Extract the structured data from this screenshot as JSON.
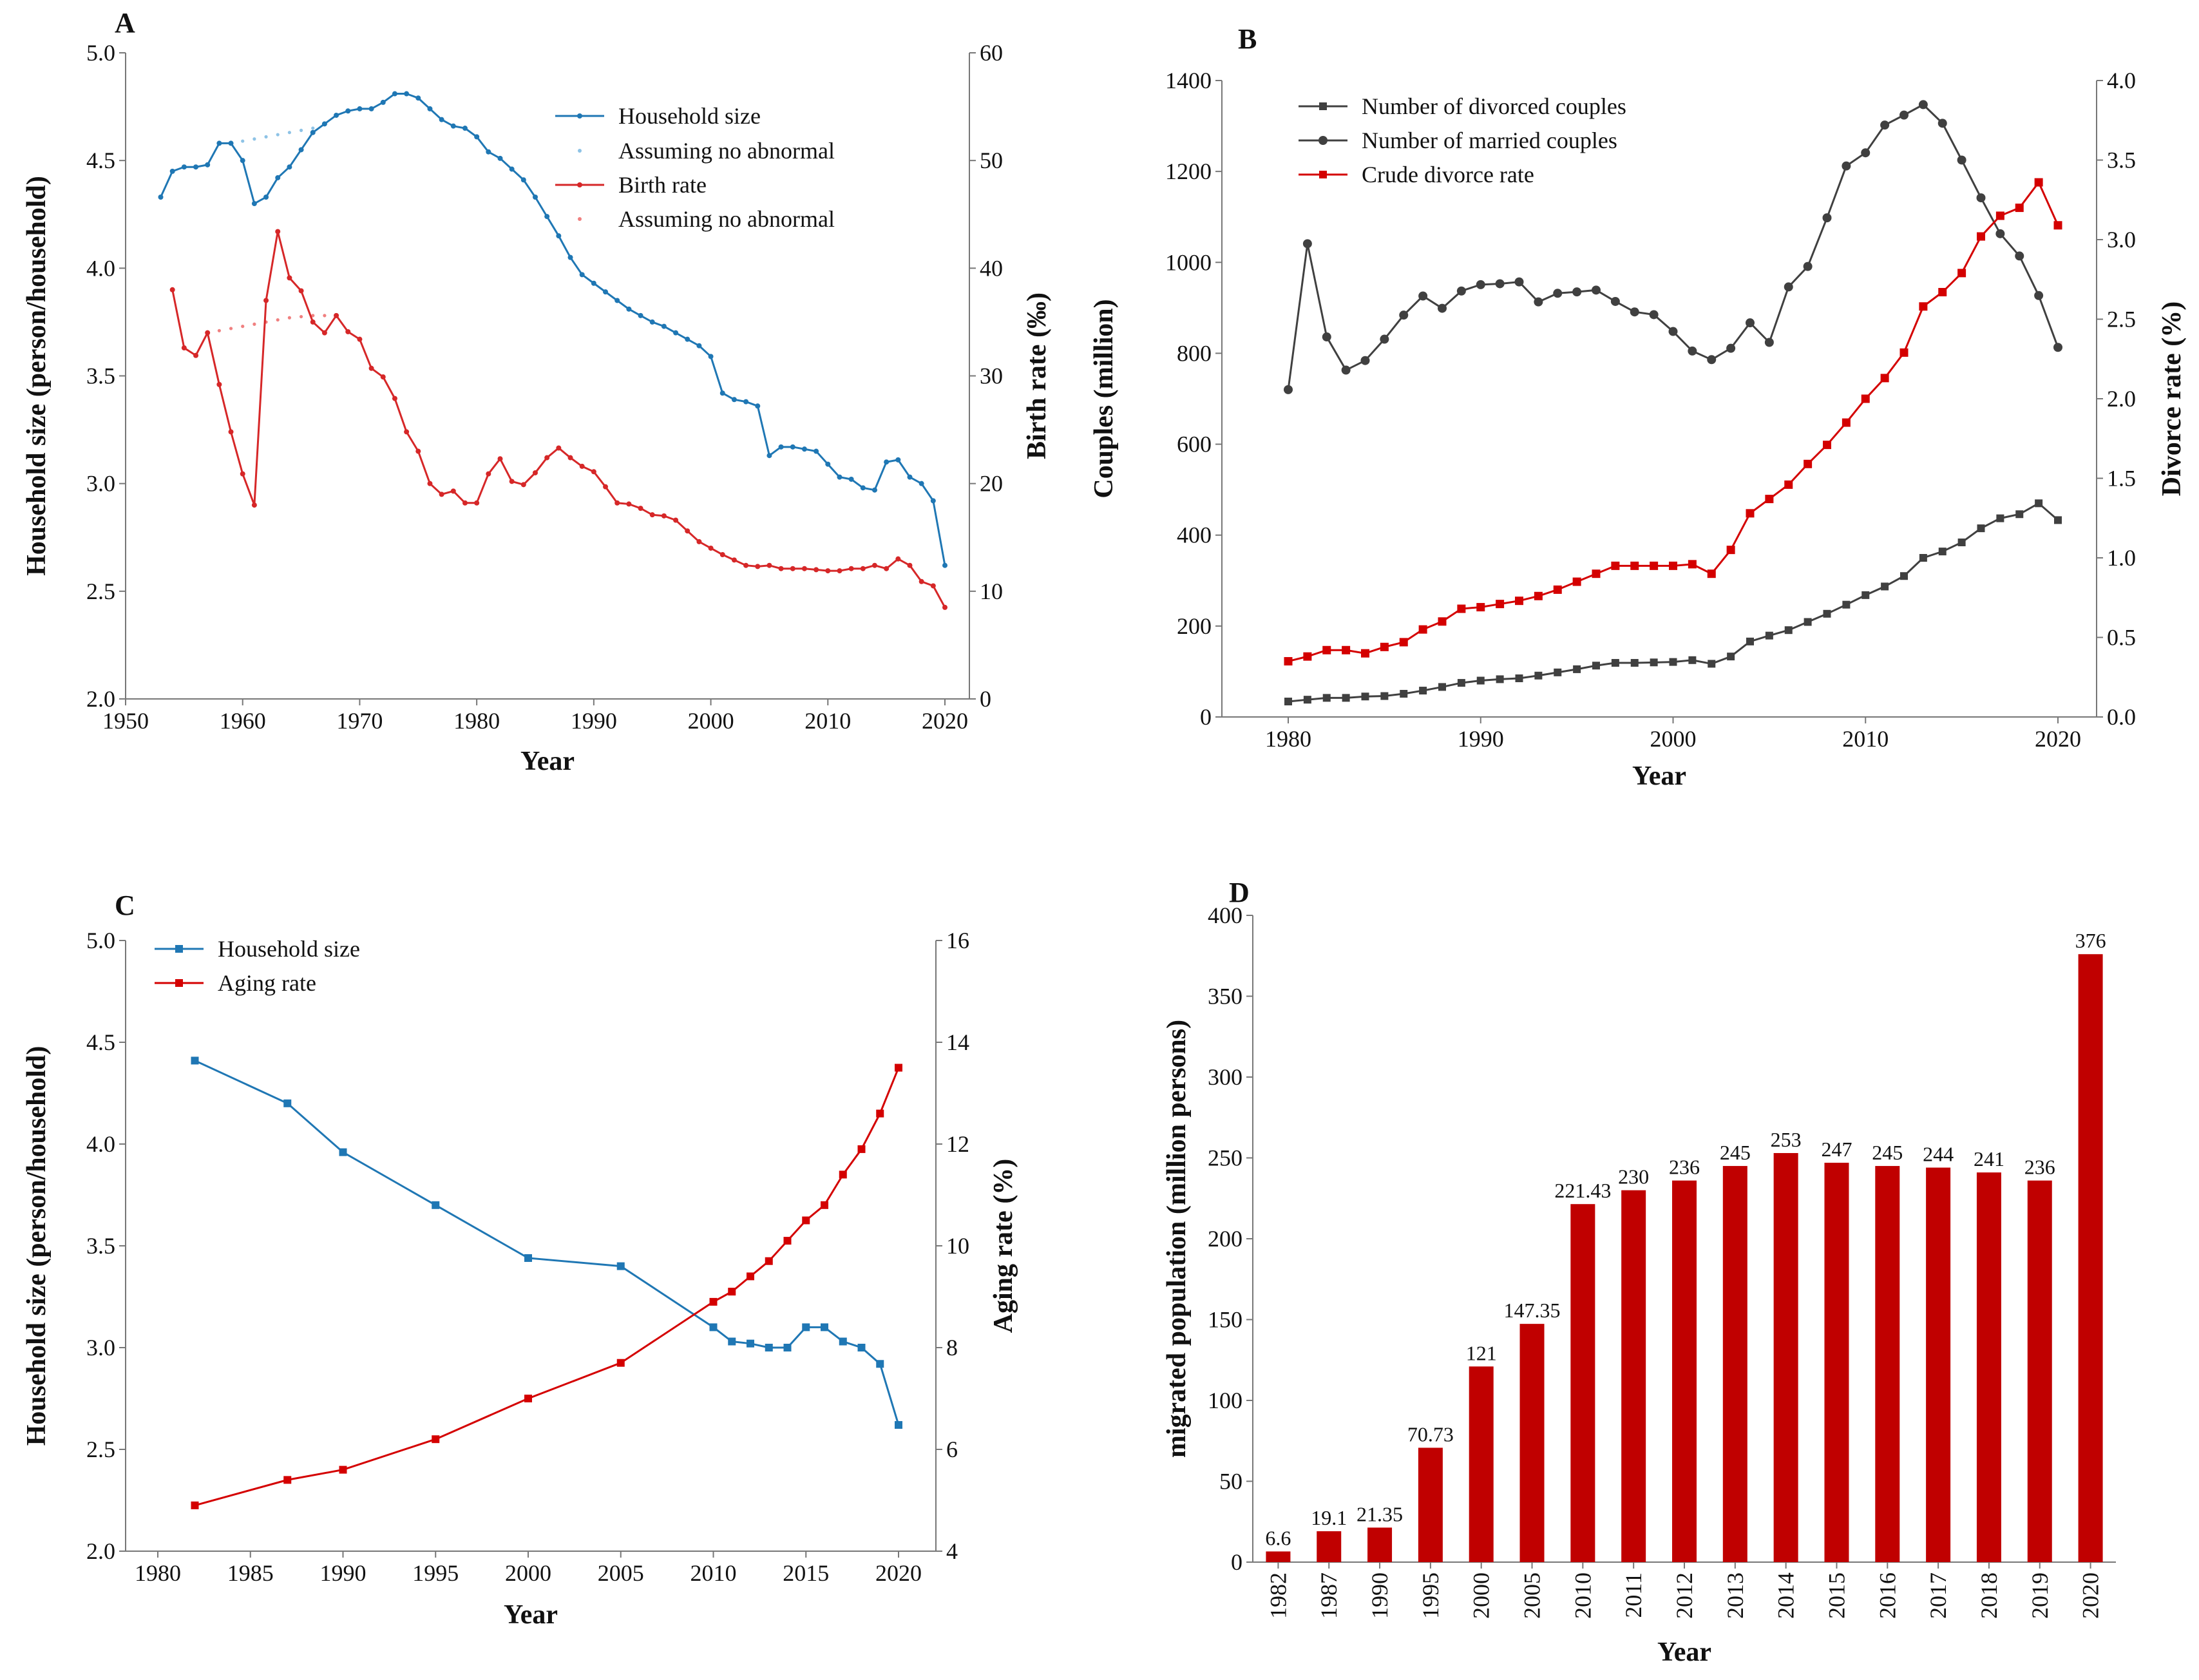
{
  "chart_data": [
    {
      "panel": "A",
      "type": "line",
      "xlabel": "Year",
      "ylabel": "Household size (person/household)",
      "y2label": "Birth rate (‰)",
      "xlim": [
        1950,
        2020
      ],
      "xticks": [
        1950,
        1960,
        1970,
        1980,
        1990,
        2000,
        2010,
        2020
      ],
      "ylim": [
        2.0,
        5.0
      ],
      "yticks": [
        "2.0",
        "2.5",
        "3.0",
        "3.5",
        "4.0",
        "4.5",
        "5.0"
      ],
      "y2lim": [
        0,
        60
      ],
      "y2ticks": [
        "0",
        "10",
        "20",
        "30",
        "40",
        "50",
        "60"
      ],
      "legend": [
        "Household size",
        "Assuming no abnormal",
        "Birth rate",
        "Assuming no abnormal"
      ],
      "legend_position": "top-right",
      "series": [
        {
          "name": "Household size",
          "axis": "left",
          "color": "#1f77b4",
          "x": [
            1953,
            1954,
            1955,
            1956,
            1957,
            1958,
            1959,
            1960,
            1961,
            1962,
            1963,
            1964,
            1965,
            1966,
            1967,
            1968,
            1969,
            1970,
            1971,
            1972,
            1973,
            1974,
            1975,
            1976,
            1977,
            1978,
            1979,
            1980,
            1981,
            1982,
            1983,
            1984,
            1985,
            1986,
            1987,
            1988,
            1989,
            1990,
            1991,
            1992,
            1993,
            1994,
            1995,
            1996,
            1997,
            1998,
            1999,
            2000,
            2001,
            2002,
            2003,
            2004,
            2005,
            2006,
            2007,
            2008,
            2009,
            2010,
            2011,
            2012,
            2013,
            2014,
            2015,
            2016,
            2017,
            2018,
            2019,
            2020
          ],
          "y": [
            4.33,
            4.45,
            4.47,
            4.47,
            4.48,
            4.58,
            4.58,
            4.5,
            4.3,
            4.33,
            4.42,
            4.47,
            4.55,
            4.63,
            4.67,
            4.71,
            4.73,
            4.74,
            4.74,
            4.77,
            4.81,
            4.81,
            4.79,
            4.74,
            4.69,
            4.66,
            4.65,
            4.61,
            4.54,
            4.51,
            4.46,
            4.41,
            4.33,
            4.24,
            4.15,
            4.05,
            3.97,
            3.93,
            3.89,
            3.85,
            3.81,
            3.78,
            3.75,
            3.73,
            3.7,
            3.67,
            3.64,
            3.59,
            3.42,
            3.39,
            3.38,
            3.36,
            3.13,
            3.17,
            3.17,
            3.16,
            3.15,
            3.09,
            3.03,
            3.02,
            2.98,
            2.97,
            3.1,
            3.11,
            3.03,
            3.0,
            2.92,
            2.62
          ]
        },
        {
          "name": "Assuming no abnormal",
          "axis": "left",
          "color": "#8ec3e6",
          "dotted": true,
          "x": [
            1959,
            1960,
            1961,
            1962,
            1963,
            1964,
            1965,
            1966
          ],
          "y": [
            4.58,
            4.59,
            4.6,
            4.61,
            4.62,
            4.63,
            4.64,
            4.65
          ]
        },
        {
          "name": "Birth rate",
          "axis": "right",
          "color": "#d62728",
          "x": [
            1954,
            1955,
            1956,
            1957,
            1958,
            1959,
            1960,
            1961,
            1962,
            1963,
            1964,
            1965,
            1966,
            1967,
            1968,
            1969,
            1970,
            1971,
            1972,
            1973,
            1974,
            1975,
            1976,
            1977,
            1978,
            1979,
            1980,
            1981,
            1982,
            1983,
            1984,
            1985,
            1986,
            1987,
            1988,
            1989,
            1990,
            1991,
            1992,
            1993,
            1994,
            1995,
            1996,
            1997,
            1998,
            1999,
            2000,
            2001,
            2002,
            2003,
            2004,
            2005,
            2006,
            2007,
            2008,
            2009,
            2010,
            2011,
            2012,
            2013,
            2014,
            2015,
            2016,
            2017,
            2018,
            2019,
            2020
          ],
          "y": [
            38.0,
            32.6,
            31.9,
            34.0,
            29.2,
            24.8,
            20.9,
            18.0,
            37.0,
            43.4,
            39.1,
            37.9,
            35.0,
            34.0,
            35.6,
            34.1,
            33.4,
            30.7,
            29.9,
            27.9,
            24.8,
            23.0,
            20.0,
            19.0,
            19.3,
            18.2,
            18.2,
            20.9,
            22.3,
            20.2,
            19.9,
            21.0,
            22.4,
            23.3,
            22.4,
            21.6,
            21.1,
            19.7,
            18.2,
            18.1,
            17.7,
            17.1,
            17.0,
            16.6,
            15.6,
            14.6,
            14.0,
            13.4,
            12.9,
            12.4,
            12.3,
            12.4,
            12.1,
            12.1,
            12.1,
            12.0,
            11.9,
            11.9,
            12.1,
            12.1,
            12.4,
            12.1,
            13.0,
            12.4,
            10.9,
            10.5,
            8.5
          ]
        },
        {
          "name": "Assuming no abnormal",
          "axis": "right",
          "color": "#f08080",
          "dotted": true,
          "x": [
            1957,
            1958,
            1959,
            1960,
            1961,
            1962,
            1963,
            1964,
            1965,
            1966,
            1967
          ],
          "y": [
            34.0,
            34.2,
            34.4,
            34.6,
            34.8,
            35.0,
            35.2,
            35.4,
            35.5,
            35.6,
            35.6
          ]
        }
      ]
    },
    {
      "panel": "B",
      "type": "line",
      "xlabel": "Year",
      "ylabel": "Couples (million)",
      "y2label": "Divorce rate (%)",
      "xlim": [
        1978,
        2021
      ],
      "xticks": [
        1980,
        1990,
        2000,
        2010,
        2020
      ],
      "ylim": [
        0,
        1400
      ],
      "yticks": [
        "0",
        "200",
        "400",
        "600",
        "800",
        "1000",
        "1200",
        "1400"
      ],
      "y2lim": [
        0,
        4
      ],
      "y2ticks": [
        "0.0",
        "0.5",
        "1.0",
        "1.5",
        "2.0",
        "2.5",
        "3.0",
        "3.5",
        "4.0"
      ],
      "legend": [
        "Number of divorced couples",
        "Number of married couples",
        "Crude divorce rate"
      ],
      "legend_position": "top-left",
      "x": [
        1980,
        1981,
        1982,
        1983,
        1984,
        1985,
        1986,
        1987,
        1988,
        1989,
        1990,
        1991,
        1992,
        1993,
        1994,
        1995,
        1996,
        1997,
        1998,
        1999,
        2000,
        2001,
        2002,
        2003,
        2004,
        2005,
        2006,
        2007,
        2008,
        2009,
        2010,
        2011,
        2012,
        2013,
        2014,
        2015,
        2016,
        2017,
        2018,
        2019,
        2020
      ],
      "series": [
        {
          "name": "Number of divorced couples",
          "axis": "left",
          "color": "#404040",
          "marker": "square",
          "values": [
            34,
            38,
            42,
            42,
            45,
            46,
            51,
            58,
            66,
            75,
            80,
            83,
            85,
            91,
            98,
            105,
            113,
            119,
            119,
            120,
            121,
            125,
            117,
            133,
            166,
            179,
            191,
            209,
            227,
            247,
            268,
            287,
            310,
            350,
            364,
            384,
            415,
            437,
            446,
            470,
            433
          ]
        },
        {
          "name": "Number of married couples",
          "axis": "left",
          "color": "#404040",
          "marker": "circle",
          "values": [
            720,
            1041,
            836,
            763,
            784,
            831,
            884,
            926,
            899,
            937,
            951,
            953,
            957,
            913,
            932,
            935,
            939,
            914,
            891,
            885,
            848,
            805,
            786,
            811,
            867,
            824,
            946,
            991,
            1098,
            1212,
            1241,
            1302,
            1324,
            1347,
            1306,
            1225,
            1142,
            1063,
            1014,
            927,
            813
          ]
        },
        {
          "name": "Crude divorce rate",
          "axis": "right",
          "color": "#d40000",
          "marker": "square",
          "values": [
            0.35,
            0.38,
            0.42,
            0.42,
            0.4,
            0.44,
            0.47,
            0.55,
            0.6,
            0.68,
            0.69,
            0.71,
            0.73,
            0.76,
            0.8,
            0.85,
            0.9,
            0.95,
            0.95,
            0.95,
            0.95,
            0.96,
            0.9,
            1.05,
            1.28,
            1.37,
            1.46,
            1.59,
            1.71,
            1.85,
            2.0,
            2.13,
            2.29,
            2.58,
            2.67,
            2.79,
            3.02,
            3.15,
            3.2,
            3.36,
            3.09
          ]
        }
      ]
    },
    {
      "panel": "C",
      "type": "line",
      "xlabel": "Year",
      "ylabel": "Household size (person/household)",
      "y2label": "Aging rate (%)",
      "xlim": [
        1978,
        2021
      ],
      "xticks": [
        1980,
        1985,
        1990,
        1995,
        2000,
        2005,
        2010,
        2015,
        2020
      ],
      "ylim": [
        2.0,
        5.0
      ],
      "yticks": [
        "2.0",
        "2.5",
        "3.0",
        "3.5",
        "4.0",
        "4.5",
        "5.0"
      ],
      "y2lim": [
        4,
        16
      ],
      "y2ticks": [
        "4",
        "6",
        "8",
        "10",
        "12",
        "14",
        "16"
      ],
      "legend": [
        "Household size",
        "Aging rate"
      ],
      "legend_position": "top-left",
      "series": [
        {
          "name": "Household size",
          "axis": "left",
          "color": "#1f77b4",
          "marker": "square",
          "x": [
            1982,
            1987,
            1990,
            1995,
            2000,
            2005,
            2010,
            2011,
            2012,
            2013,
            2014,
            2015,
            2016,
            2017,
            2018,
            2019,
            2020
          ],
          "y": [
            4.41,
            4.2,
            3.96,
            3.7,
            3.44,
            3.4,
            3.1,
            3.03,
            3.02,
            3.0,
            3.0,
            3.1,
            3.1,
            3.03,
            3.0,
            2.92,
            2.62
          ]
        },
        {
          "name": "Aging rate",
          "axis": "right",
          "color": "#d40000",
          "marker": "square",
          "x": [
            1982,
            1987,
            1990,
            1995,
            2000,
            2005,
            2010,
            2011,
            2012,
            2013,
            2014,
            2015,
            2016,
            2017,
            2018,
            2019,
            2020
          ],
          "y": [
            4.9,
            5.4,
            5.6,
            6.2,
            7.0,
            7.7,
            8.9,
            9.1,
            9.4,
            9.7,
            10.1,
            10.5,
            10.8,
            11.4,
            11.9,
            12.6,
            13.5
          ]
        }
      ]
    },
    {
      "panel": "D",
      "type": "bar",
      "xlabel": "Year",
      "ylabel": "migrated population (million persons)",
      "ylim": [
        0,
        400
      ],
      "yticks": [
        "0",
        "50",
        "100",
        "150",
        "200",
        "250",
        "300",
        "350",
        "400"
      ],
      "color": "#c00000",
      "categories": [
        "1982",
        "1987",
        "1990",
        "1995",
        "2000",
        "2005",
        "2010",
        "2011",
        "2012",
        "2013",
        "2014",
        "2015",
        "2016",
        "2017",
        "2018",
        "2019",
        "2020"
      ],
      "values": [
        6.6,
        19.1,
        21.35,
        70.73,
        121,
        147.35,
        221.43,
        230,
        236,
        245,
        253,
        247,
        245,
        244,
        241,
        236,
        376
      ],
      "labels": [
        "6.6",
        "19.1",
        "21.35",
        "70.73",
        "121",
        "147.35",
        "221.43",
        "230",
        "236",
        "245",
        "253",
        "247",
        "245",
        "244",
        "241",
        "236",
        "376"
      ]
    }
  ]
}
